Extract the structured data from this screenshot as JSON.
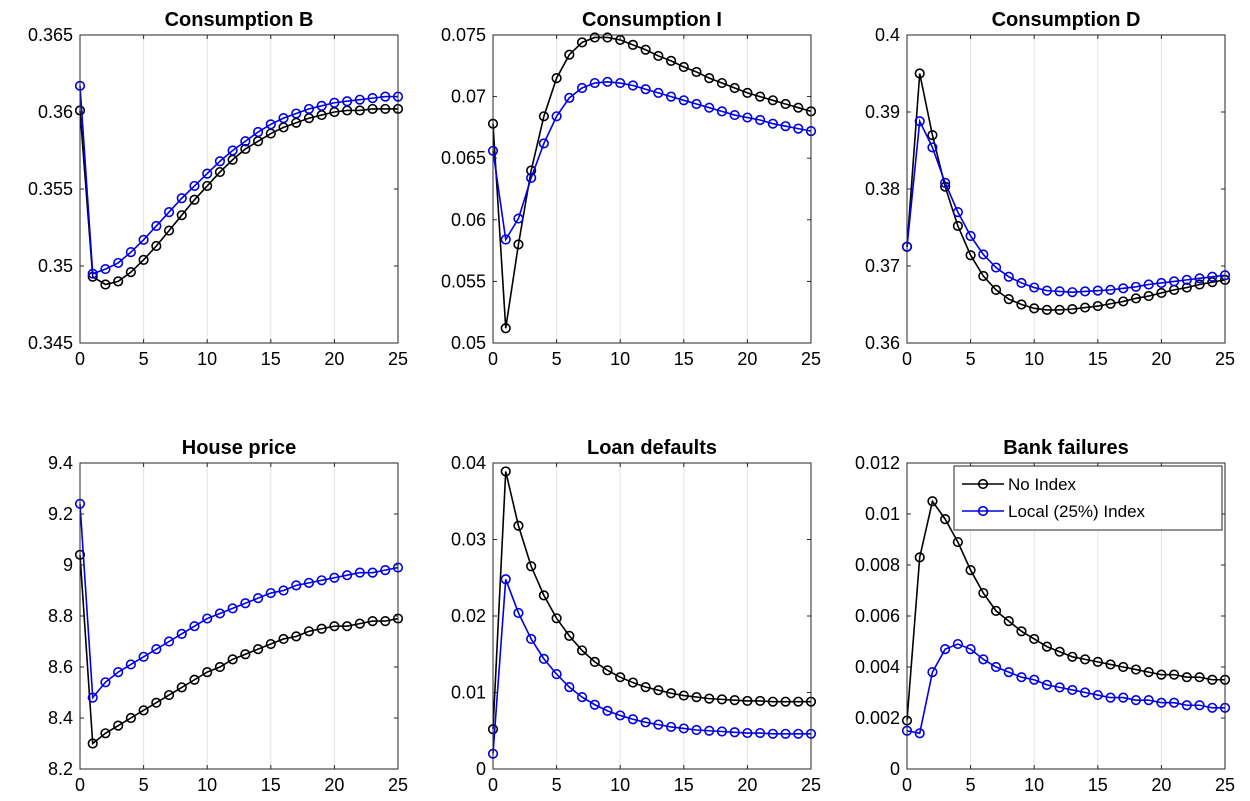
{
  "figure": {
    "legend": {
      "location": "top-right of Bank failures panel",
      "entries": [
        "No Index",
        "Local (25%) Index"
      ]
    }
  },
  "chart_data": [
    {
      "type": "line",
      "title": "Consumption B",
      "x": [
        0,
        1,
        2,
        3,
        4,
        5,
        6,
        7,
        8,
        9,
        10,
        11,
        12,
        13,
        14,
        15,
        16,
        17,
        18,
        19,
        20,
        21,
        22,
        23,
        24,
        25
      ],
      "xlim": [
        0,
        25
      ],
      "xticks": [
        0,
        5,
        10,
        15,
        20,
        25
      ],
      "ylim": [
        0.345,
        0.365
      ],
      "yticks": [
        "0.345",
        "0.35",
        "0.355",
        "0.36",
        "0.365"
      ],
      "grid": "vertical",
      "series": [
        {
          "name": "No Index",
          "color": "#000000",
          "values": [
            0.3601,
            0.3493,
            0.3488,
            0.349,
            0.3496,
            0.3504,
            0.3513,
            0.3523,
            0.3533,
            0.3543,
            0.3552,
            0.3561,
            0.3569,
            0.3576,
            0.3581,
            0.3586,
            0.359,
            0.3593,
            0.3596,
            0.3598,
            0.36,
            0.3601,
            0.3601,
            0.3602,
            0.3602,
            0.3602
          ]
        },
        {
          "name": "Local (25%) Index",
          "color": "#0000e6",
          "values": [
            0.3617,
            0.3495,
            0.3498,
            0.3502,
            0.3509,
            0.3517,
            0.3526,
            0.3535,
            0.3544,
            0.3552,
            0.356,
            0.3568,
            0.3575,
            0.3581,
            0.3587,
            0.3592,
            0.3596,
            0.3599,
            0.3602,
            0.3604,
            0.3606,
            0.3607,
            0.3608,
            0.3609,
            0.361,
            0.361
          ]
        }
      ]
    },
    {
      "type": "line",
      "title": "Consumption I",
      "x": [
        0,
        1,
        2,
        3,
        4,
        5,
        6,
        7,
        8,
        9,
        10,
        11,
        12,
        13,
        14,
        15,
        16,
        17,
        18,
        19,
        20,
        21,
        22,
        23,
        24,
        25
      ],
      "xlim": [
        0,
        25
      ],
      "xticks": [
        0,
        5,
        10,
        15,
        20,
        25
      ],
      "ylim": [
        0.05,
        0.075
      ],
      "yticks": [
        "0.05",
        "0.055",
        "0.06",
        "0.065",
        "0.07",
        "0.075"
      ],
      "grid": "vertical",
      "series": [
        {
          "name": "No Index",
          "color": "#000000",
          "values": [
            0.0678,
            0.0512,
            0.058,
            0.064,
            0.0684,
            0.0715,
            0.0734,
            0.0744,
            0.0748,
            0.0748,
            0.0746,
            0.0742,
            0.0738,
            0.0733,
            0.0729,
            0.0724,
            0.072,
            0.0715,
            0.0711,
            0.0707,
            0.0703,
            0.07,
            0.0697,
            0.0694,
            0.0691,
            0.0688
          ]
        },
        {
          "name": "Local (25%) Index",
          "color": "#0000e6",
          "values": [
            0.0656,
            0.0584,
            0.0601,
            0.0634,
            0.0662,
            0.0684,
            0.0699,
            0.0707,
            0.0711,
            0.0712,
            0.0711,
            0.0709,
            0.0706,
            0.0703,
            0.07,
            0.0697,
            0.0694,
            0.0691,
            0.0688,
            0.0685,
            0.0683,
            0.0681,
            0.0678,
            0.0676,
            0.0674,
            0.0672
          ]
        }
      ]
    },
    {
      "type": "line",
      "title": "Consumption D",
      "x": [
        0,
        1,
        2,
        3,
        4,
        5,
        6,
        7,
        8,
        9,
        10,
        11,
        12,
        13,
        14,
        15,
        16,
        17,
        18,
        19,
        20,
        21,
        22,
        23,
        24,
        25
      ],
      "xlim": [
        0,
        25
      ],
      "xticks": [
        0,
        5,
        10,
        15,
        20,
        25
      ],
      "ylim": [
        0.36,
        0.4
      ],
      "yticks": [
        "0.36",
        "0.37",
        "0.38",
        "0.39",
        "0.4"
      ],
      "grid": "vertical",
      "series": [
        {
          "name": "No Index",
          "color": "#000000",
          "values": [
            0.3725,
            0.395,
            0.387,
            0.3803,
            0.3752,
            0.3714,
            0.3687,
            0.3669,
            0.3657,
            0.365,
            0.3645,
            0.3643,
            0.3643,
            0.3644,
            0.3646,
            0.3648,
            0.3651,
            0.3654,
            0.3658,
            0.3661,
            0.3665,
            0.3669,
            0.3672,
            0.3676,
            0.3679,
            0.3682
          ]
        },
        {
          "name": "Local (25%) Index",
          "color": "#0000e6",
          "values": [
            0.3725,
            0.3888,
            0.3854,
            0.3808,
            0.377,
            0.3739,
            0.3715,
            0.3698,
            0.3686,
            0.3678,
            0.3672,
            0.3668,
            0.3667,
            0.3666,
            0.3667,
            0.3668,
            0.3669,
            0.3671,
            0.3673,
            0.3676,
            0.3678,
            0.368,
            0.3682,
            0.3684,
            0.3686,
            0.3688
          ]
        }
      ]
    },
    {
      "type": "line",
      "title": "House price",
      "x": [
        0,
        1,
        2,
        3,
        4,
        5,
        6,
        7,
        8,
        9,
        10,
        11,
        12,
        13,
        14,
        15,
        16,
        17,
        18,
        19,
        20,
        21,
        22,
        23,
        24,
        25
      ],
      "xlim": [
        0,
        25
      ],
      "xticks": [
        0,
        5,
        10,
        15,
        20,
        25
      ],
      "ylim": [
        8.2,
        9.4
      ],
      "yticks": [
        "8.2",
        "8.4",
        "8.6",
        "8.8",
        "9",
        "9.2",
        "9.4"
      ],
      "grid": "vertical",
      "series": [
        {
          "name": "No Index",
          "color": "#000000",
          "values": [
            9.04,
            8.3,
            8.34,
            8.37,
            8.4,
            8.43,
            8.46,
            8.49,
            8.52,
            8.55,
            8.58,
            8.6,
            8.63,
            8.65,
            8.67,
            8.69,
            8.71,
            8.72,
            8.74,
            8.75,
            8.76,
            8.76,
            8.77,
            8.78,
            8.78,
            8.79
          ]
        },
        {
          "name": "Local (25%) Index",
          "color": "#0000e6",
          "values": [
            9.24,
            8.48,
            8.54,
            8.58,
            8.61,
            8.64,
            8.67,
            8.7,
            8.73,
            8.76,
            8.79,
            8.81,
            8.83,
            8.85,
            8.87,
            8.89,
            8.9,
            8.92,
            8.93,
            8.94,
            8.95,
            8.96,
            8.97,
            8.97,
            8.98,
            8.99
          ]
        }
      ]
    },
    {
      "type": "line",
      "title": "Loan defaults",
      "x": [
        0,
        1,
        2,
        3,
        4,
        5,
        6,
        7,
        8,
        9,
        10,
        11,
        12,
        13,
        14,
        15,
        16,
        17,
        18,
        19,
        20,
        21,
        22,
        23,
        24,
        25
      ],
      "xlim": [
        0,
        25
      ],
      "xticks": [
        0,
        5,
        10,
        15,
        20,
        25
      ],
      "ylim": [
        0,
        0.04
      ],
      "yticks": [
        "0",
        "0.01",
        "0.02",
        "0.03",
        "0.04"
      ],
      "grid": "vertical",
      "series": [
        {
          "name": "No Index",
          "color": "#000000",
          "values": [
            0.0052,
            0.0389,
            0.0318,
            0.0265,
            0.0227,
            0.0197,
            0.0174,
            0.0155,
            0.014,
            0.0129,
            0.012,
            0.0113,
            0.0107,
            0.0103,
            0.0099,
            0.0096,
            0.0094,
            0.0092,
            0.0091,
            0.009,
            0.0089,
            0.0089,
            0.0088,
            0.0088,
            0.0088,
            0.0088
          ]
        },
        {
          "name": "Local (25%) Index",
          "color": "#0000e6",
          "values": [
            0.002,
            0.0248,
            0.0204,
            0.017,
            0.0144,
            0.0124,
            0.0107,
            0.0094,
            0.0084,
            0.0076,
            0.007,
            0.0065,
            0.0061,
            0.0058,
            0.0055,
            0.0053,
            0.0051,
            0.005,
            0.0049,
            0.0048,
            0.0047,
            0.0047,
            0.0046,
            0.0046,
            0.0046,
            0.0046
          ]
        }
      ]
    },
    {
      "type": "line",
      "title": "Bank failures",
      "x": [
        0,
        1,
        2,
        3,
        4,
        5,
        6,
        7,
        8,
        9,
        10,
        11,
        12,
        13,
        14,
        15,
        16,
        17,
        18,
        19,
        20,
        21,
        22,
        23,
        24,
        25
      ],
      "xlim": [
        0,
        25
      ],
      "xticks": [
        0,
        5,
        10,
        15,
        20,
        25
      ],
      "ylim": [
        0,
        0.012
      ],
      "yticks": [
        "0",
        "0.002",
        "0.004",
        "0.006",
        "0.008",
        "0.01",
        "0.012"
      ],
      "grid": "vertical",
      "series": [
        {
          "name": "No Index",
          "color": "#000000",
          "values": [
            0.0019,
            0.0083,
            0.0105,
            0.0098,
            0.0089,
            0.0078,
            0.0069,
            0.0062,
            0.0058,
            0.0054,
            0.0051,
            0.0048,
            0.0046,
            0.0044,
            0.0043,
            0.0042,
            0.0041,
            0.004,
            0.0039,
            0.0038,
            0.0037,
            0.0037,
            0.0036,
            0.0036,
            0.0035,
            0.0035
          ]
        },
        {
          "name": "Local (25%) Index",
          "color": "#0000e6",
          "values": [
            0.0015,
            0.0014,
            0.0038,
            0.0047,
            0.0049,
            0.0047,
            0.0043,
            0.004,
            0.0038,
            0.0036,
            0.0035,
            0.0033,
            0.0032,
            0.0031,
            0.003,
            0.0029,
            0.0028,
            0.0028,
            0.0027,
            0.0027,
            0.0026,
            0.0026,
            0.0025,
            0.0025,
            0.0024,
            0.0024
          ]
        }
      ]
    }
  ]
}
